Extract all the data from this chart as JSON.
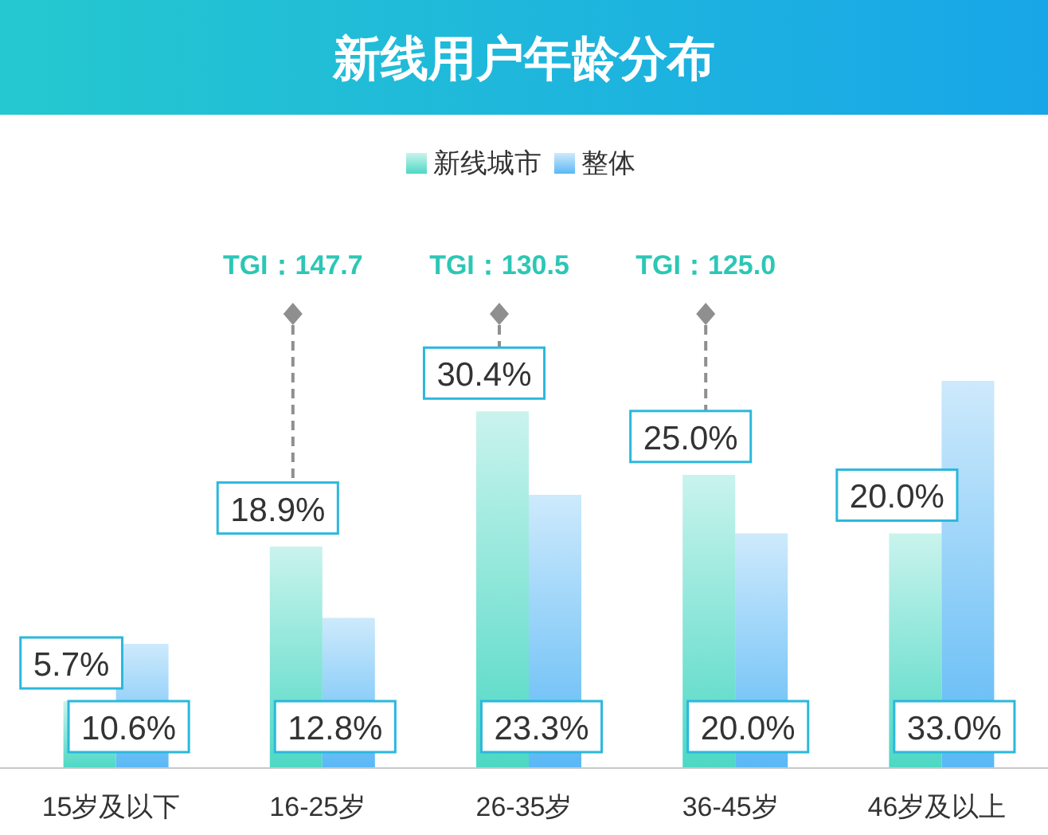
{
  "chart_data": {
    "type": "bar",
    "title": "新线用户年龄分布",
    "categories": [
      "15岁及以下",
      "16-25岁",
      "26-35岁",
      "36-45岁",
      "46岁及以上"
    ],
    "series": [
      {
        "name": "新线城市",
        "color": "#4dd8c4",
        "values": [
          5.7,
          18.9,
          30.4,
          25.0,
          20.0
        ],
        "value_labels": [
          "5.7%",
          "18.9%",
          "30.4%",
          "25.0%",
          "20.0%"
        ]
      },
      {
        "name": "整体",
        "color": "#5ab8f5",
        "values": [
          10.6,
          12.8,
          23.3,
          20.0,
          33.0
        ],
        "value_labels": [
          "10.6%",
          "12.8%",
          "23.3%",
          "20.0%",
          "33.0%"
        ]
      }
    ],
    "annotations": [
      "TGI：147.7",
      "TGI：130.5",
      "TGI：125.0"
    ],
    "legend": "top"
  }
}
